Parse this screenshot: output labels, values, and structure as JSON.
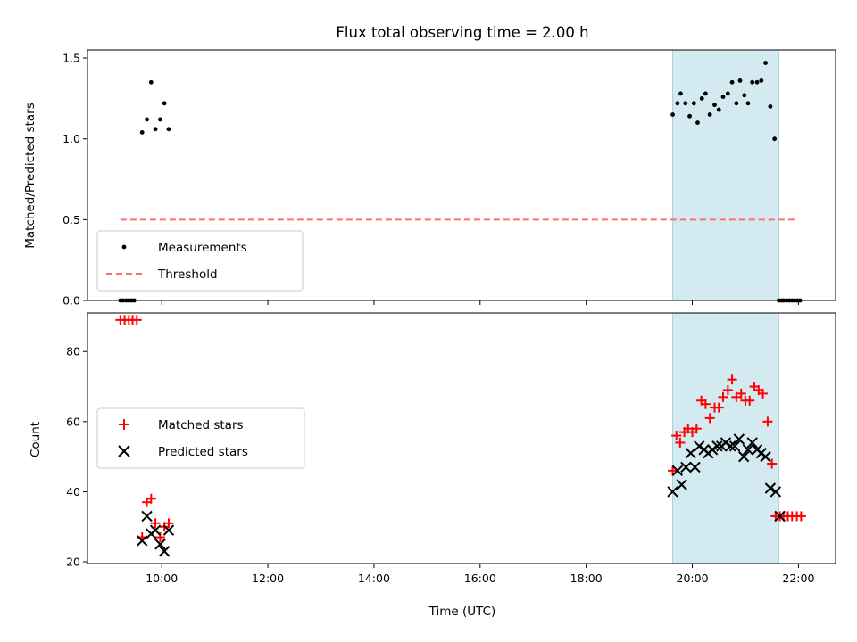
{
  "chart_data": [
    {
      "type": "scatter",
      "title": "Flux total observing time = 2.00 h",
      "xlabel": "",
      "ylabel": "Matched/Predicted stars",
      "xlim_hours": [
        8.6,
        22.7
      ],
      "ylim": [
        0,
        1.55
      ],
      "yticks": [
        0,
        0.5,
        1.0,
        1.5
      ],
      "ytick_labels": [
        "0.0",
        "0.5",
        "1.0",
        "1.5"
      ],
      "xticks_hours": [
        10,
        12,
        14,
        16,
        18,
        20,
        22
      ],
      "show_xtick_labels": false,
      "highlight_span_hours": [
        19.63,
        21.63
      ],
      "highlight_color": "#d2eaf0",
      "grid": false,
      "legend_position": "lower-left",
      "series": [
        {
          "name": "Measurements",
          "style": "dot",
          "color": "#000000",
          "x": [
            9.22,
            9.27,
            9.33,
            9.38,
            9.43,
            9.48,
            9.63,
            9.72,
            9.8,
            9.88,
            9.97,
            10.05,
            10.13,
            19.63,
            19.72,
            19.78,
            19.87,
            19.95,
            20.03,
            20.1,
            20.18,
            20.25,
            20.33,
            20.42,
            20.5,
            20.58,
            20.67,
            20.75,
            20.83,
            20.9,
            20.98,
            21.05,
            21.13,
            21.22,
            21.3,
            21.38,
            21.47,
            21.55,
            21.63,
            21.68,
            21.72,
            21.78,
            21.83,
            21.88,
            21.93,
            21.98,
            22.03
          ],
          "y": [
            0,
            0,
            0,
            0,
            0,
            0,
            1.04,
            1.12,
            1.35,
            1.06,
            1.12,
            1.22,
            1.06,
            1.15,
            1.22,
            1.28,
            1.22,
            1.14,
            1.22,
            1.1,
            1.25,
            1.28,
            1.15,
            1.21,
            1.18,
            1.26,
            1.28,
            1.35,
            1.22,
            1.36,
            1.27,
            1.22,
            1.35,
            1.35,
            1.36,
            1.47,
            1.2,
            1.0,
            0,
            0,
            0,
            0,
            0,
            0,
            0,
            0,
            0
          ]
        },
        {
          "name": "Threshold",
          "style": "dashed-line",
          "color": "#ff7070",
          "x": [
            9.22,
            21.98
          ],
          "y": [
            0.5,
            0.5
          ]
        }
      ]
    },
    {
      "type": "scatter",
      "title": "",
      "xlabel": "Time (UTC)",
      "ylabel": "Count",
      "xlim_hours": [
        8.6,
        22.7
      ],
      "ylim": [
        19.5,
        91
      ],
      "yticks": [
        20,
        40,
        60,
        80
      ],
      "ytick_labels": [
        "20",
        "40",
        "60",
        "80"
      ],
      "xticks_hours": [
        10,
        12,
        14,
        16,
        18,
        20,
        22
      ],
      "xtick_labels": [
        "10:00",
        "12:00",
        "14:00",
        "16:00",
        "18:00",
        "20:00",
        "22:00"
      ],
      "highlight_span_hours": [
        19.63,
        21.63
      ],
      "highlight_color": "#d2eaf0",
      "grid": false,
      "legend_position": "center-left",
      "series": [
        {
          "name": "Matched stars",
          "style": "plus",
          "color": "#ff0000",
          "x": [
            9.22,
            9.3,
            9.38,
            9.45,
            9.53,
            9.63,
            9.72,
            9.8,
            9.88,
            9.97,
            10.05,
            10.13,
            19.63,
            19.7,
            19.77,
            19.85,
            19.92,
            20.0,
            20.08,
            20.17,
            20.25,
            20.33,
            20.42,
            20.5,
            20.58,
            20.67,
            20.75,
            20.83,
            20.92,
            21.0,
            21.08,
            21.17,
            21.25,
            21.33,
            21.42,
            21.5,
            21.57,
            21.65,
            21.72,
            21.8,
            21.88,
            21.97,
            22.05
          ],
          "y": [
            89,
            89,
            89,
            89,
            89,
            27,
            37,
            38,
            31,
            27,
            30,
            31,
            46,
            56,
            54,
            57,
            58,
            57,
            58,
            66,
            65,
            61,
            64,
            64,
            67,
            69,
            72,
            67,
            68,
            66,
            66,
            70,
            69,
            68,
            60,
            48,
            33,
            33,
            33,
            33,
            33,
            33,
            33
          ]
        },
        {
          "name": "Predicted stars",
          "style": "x",
          "color": "#000000",
          "x": [
            9.63,
            9.72,
            9.8,
            9.88,
            9.97,
            10.05,
            10.13,
            19.63,
            19.72,
            19.8,
            19.88,
            19.97,
            20.05,
            20.13,
            20.22,
            20.3,
            20.38,
            20.47,
            20.55,
            20.63,
            20.72,
            20.8,
            20.88,
            20.97,
            21.05,
            21.13,
            21.22,
            21.3,
            21.38,
            21.47,
            21.57,
            21.65
          ],
          "y": [
            26,
            33,
            28,
            29,
            25,
            23,
            29,
            40,
            46,
            42,
            47,
            51,
            47,
            53,
            52,
            51,
            52,
            53,
            53,
            54,
            53,
            53,
            55,
            50,
            52,
            54,
            52,
            51,
            50,
            41,
            40,
            33
          ]
        }
      ]
    }
  ]
}
